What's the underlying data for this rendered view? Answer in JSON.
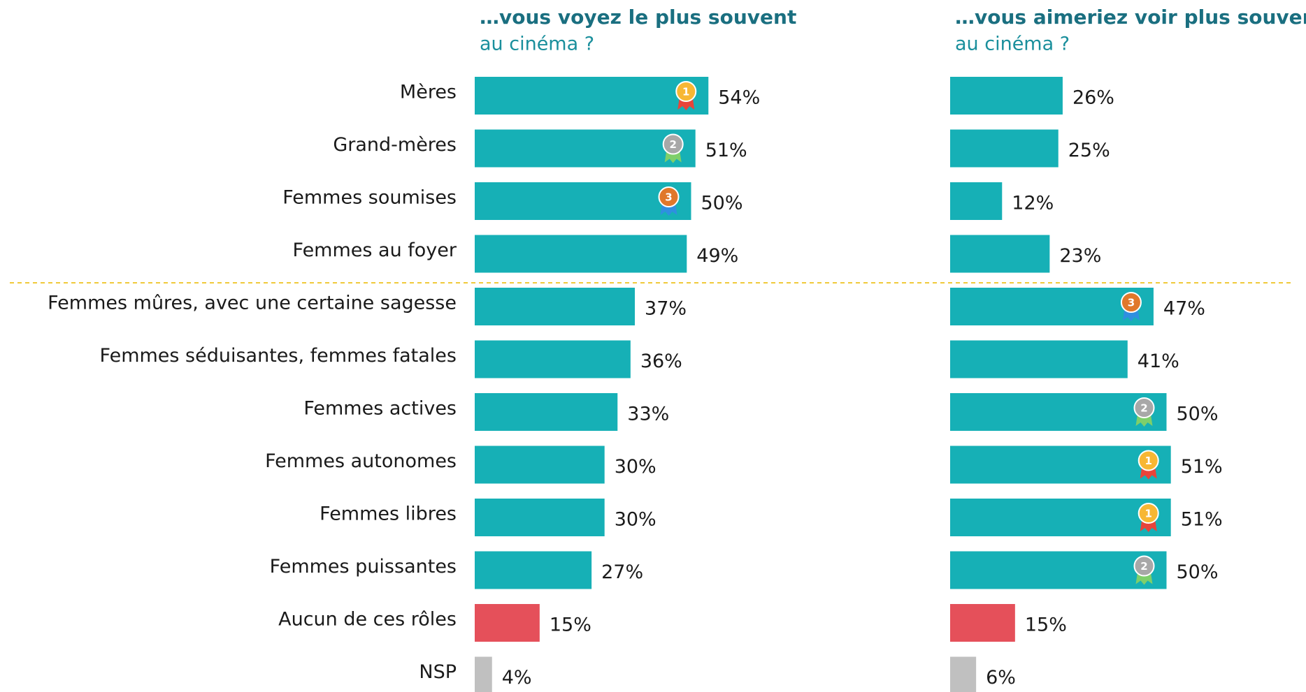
{
  "chart_data": [
    {
      "type": "bar",
      "orientation": "horizontal",
      "title": "…vous voyez le plus souvent",
      "subtitle": "au cinéma ?",
      "categories": [
        "Mères",
        "Grand-mères",
        "Femmes soumises",
        "Femmes au foyer",
        "Femmes mûres, avec une certaine sagesse",
        "Femmes séduisantes, femmes fatales",
        "Femmes actives",
        "Femmes autonomes",
        "Femmes libres",
        "Femmes puissantes",
        "Aucun de ces rôles",
        "NSP"
      ],
      "values": [
        54,
        51,
        50,
        49,
        37,
        36,
        33,
        30,
        30,
        27,
        15,
        4
      ],
      "value_labels": [
        "54%",
        "51%",
        "50%",
        "49%",
        "37%",
        "36%",
        "33%",
        "30%",
        "30%",
        "27%",
        "15%",
        "4%"
      ],
      "colors": [
        "#16b0b6",
        "#16b0b6",
        "#16b0b6",
        "#16b0b6",
        "#16b0b6",
        "#16b0b6",
        "#16b0b6",
        "#16b0b6",
        "#16b0b6",
        "#16b0b6",
        "#e5505a",
        "#c0c0c0"
      ],
      "medals": [
        1,
        2,
        3,
        null,
        null,
        null,
        null,
        null,
        null,
        null,
        null,
        null
      ]
    },
    {
      "type": "bar",
      "orientation": "horizontal",
      "title": "…vous aimeriez voir plus souvent",
      "subtitle": "au cinéma ?",
      "values": [
        26,
        25,
        12,
        23,
        47,
        41,
        50,
        51,
        51,
        50,
        15,
        6
      ],
      "value_labels": [
        "26%",
        "25%",
        "12%",
        "23%",
        "47%",
        "41%",
        "50%",
        "51%",
        "51%",
        "50%",
        "15%",
        "6%"
      ],
      "colors": [
        "#16b0b6",
        "#16b0b6",
        "#16b0b6",
        "#16b0b6",
        "#16b0b6",
        "#16b0b6",
        "#16b0b6",
        "#16b0b6",
        "#16b0b6",
        "#16b0b6",
        "#e5505a",
        "#c0c0c0"
      ],
      "medals": [
        null,
        null,
        null,
        null,
        3,
        null,
        2,
        1,
        1,
        2,
        null,
        null
      ]
    }
  ]
}
